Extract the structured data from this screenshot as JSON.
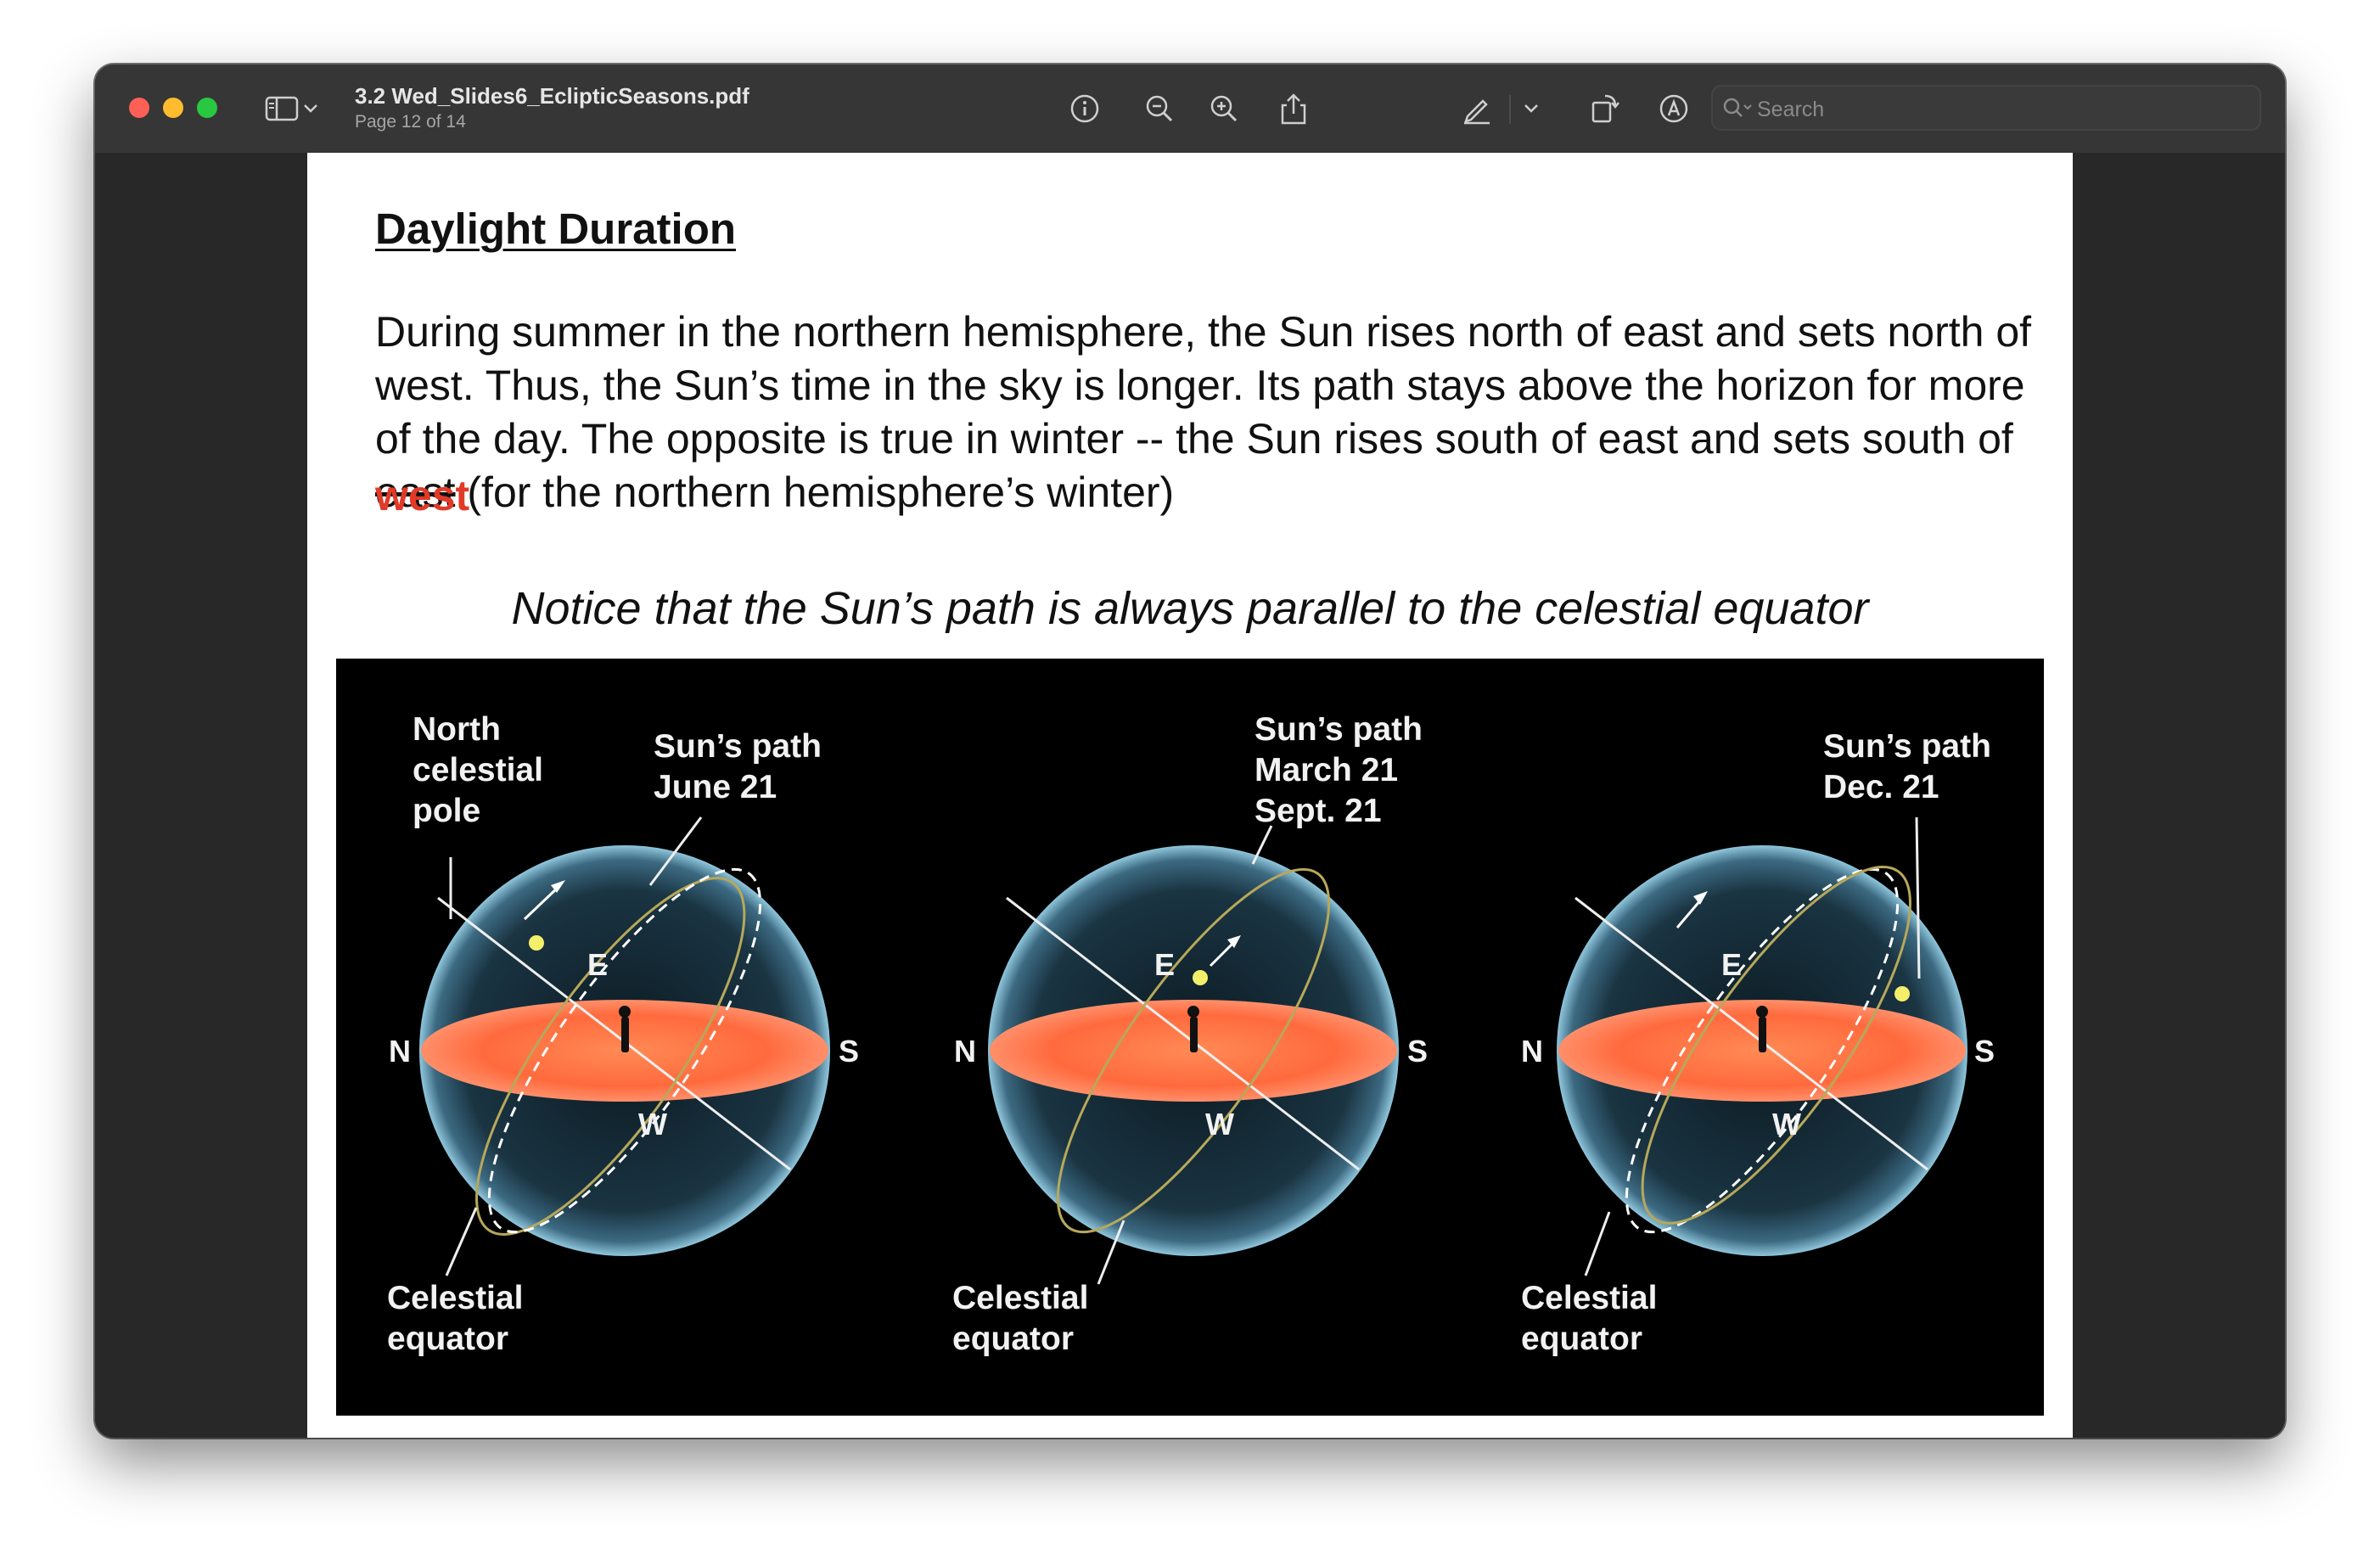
{
  "window": {
    "doc_title": "3.2 Wed_Slides6_EclipticSeasons.pdf",
    "page_info": "Page 12 of 14"
  },
  "toolbar": {
    "search_placeholder": "Search",
    "icons": [
      "sidebar-icon",
      "chevron-down-icon",
      "info-icon",
      "zoom-out-icon",
      "zoom-in-icon",
      "share-icon",
      "markup-pen-icon",
      "chevron-down-icon",
      "rotate-icon",
      "annotate-icon",
      "form-fill-icon",
      "search-icon"
    ]
  },
  "slide": {
    "heading": "Daylight Duration",
    "para_before": "During summer in the northern hemisphere, the Sun rises north of east and sets north of west.  Thus, the Sun’s time in the sky is longer.  Its path stays above the horizon for more of the day.  The opposite is true in winter -- the Sun rises south of east and sets south of ",
    "struck_word": "east",
    "correction_word": "west",
    "para_after": " (for the northern hemisphere’s winter)",
    "notice": "Notice that the Sun’s path is always parallel to the celestial equator"
  },
  "figure": {
    "panels": [
      {
        "path_label": "Sun’s path\nJune 21",
        "pole_label": "North\ncelestial\npole",
        "equator_label": "Celestial\nequator",
        "N": "N",
        "S": "S",
        "E": "E",
        "W": "W"
      },
      {
        "path_label": "Sun’s path\nMarch 21\nSept. 21",
        "equator_label": "Celestial\nequator",
        "N": "N",
        "S": "S",
        "E": "E",
        "W": "W"
      },
      {
        "path_label": "Sun’s path\nDec. 21",
        "equator_label": "Celestial\nequator",
        "N": "N",
        "S": "S",
        "E": "E",
        "W": "W"
      }
    ]
  },
  "colors": {
    "horizon_disk": "#ff6a3d",
    "sun": "#f4ef6a",
    "sun_path": "#b7a85a",
    "correction": "#e23a28"
  }
}
